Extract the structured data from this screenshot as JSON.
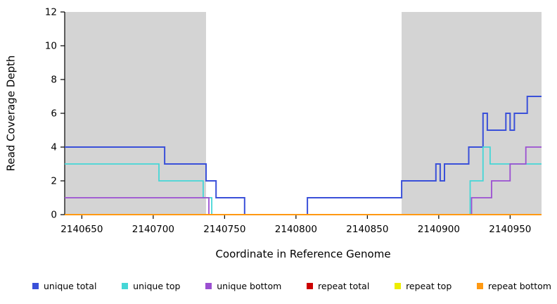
{
  "chart_data": {
    "type": "line",
    "subtype": "step-coverage",
    "title": "",
    "xlabel": "Coordinate in Reference Genome",
    "ylabel": "Read Coverage Depth",
    "xlim": [
      2140638,
      2140972
    ],
    "ylim": [
      0,
      12
    ],
    "x_ticks": [
      2140650,
      2140700,
      2140750,
      2140800,
      2140850,
      2140900,
      2140950
    ],
    "y_ticks": [
      0,
      2,
      4,
      6,
      8,
      10,
      12
    ],
    "grid": false,
    "background_color": "#ffffff",
    "highlight_regions": [
      {
        "start": 2140638,
        "end": 2140737,
        "color": "#d4d4d4"
      },
      {
        "start": 2140874,
        "end": 2140972,
        "color": "#d4d4d4"
      }
    ],
    "series": [
      {
        "name": "unique total",
        "color": "#3a50d9",
        "width": 2,
        "steps": [
          [
            2140638,
            4
          ],
          [
            2140708,
            3
          ],
          [
            2140737,
            2
          ],
          [
            2140744,
            1
          ],
          [
            2140764,
            0
          ],
          [
            2140808,
            1
          ],
          [
            2140874,
            2
          ],
          [
            2140898,
            3
          ],
          [
            2140901,
            2
          ],
          [
            2140904,
            3
          ],
          [
            2140921,
            4
          ],
          [
            2140931,
            6
          ],
          [
            2140934,
            5
          ],
          [
            2140947,
            6
          ],
          [
            2140950,
            5
          ],
          [
            2140953,
            6
          ],
          [
            2140962,
            7
          ]
        ]
      },
      {
        "name": "unique top",
        "color": "#45d6d6",
        "width": 1.8,
        "steps": [
          [
            2140638,
            3
          ],
          [
            2140704,
            2
          ],
          [
            2140735,
            1
          ],
          [
            2140741,
            0
          ],
          [
            2140922,
            2
          ],
          [
            2140931,
            4
          ],
          [
            2140936,
            3
          ]
        ]
      },
      {
        "name": "unique bottom",
        "color": "#9b4fd1",
        "width": 1.8,
        "steps": [
          [
            2140638,
            1
          ],
          [
            2140739,
            0
          ],
          [
            2140923,
            1
          ],
          [
            2140937,
            2
          ],
          [
            2140950,
            3
          ],
          [
            2140961,
            4
          ]
        ]
      },
      {
        "name": "repeat total",
        "color": "#cc0000",
        "width": 1.8,
        "steps": [
          [
            2140638,
            0
          ]
        ]
      },
      {
        "name": "repeat top",
        "color": "#eded00",
        "width": 1.8,
        "steps": [
          [
            2140638,
            0
          ]
        ]
      },
      {
        "name": "repeat bottom",
        "color": "#ff9912",
        "width": 2,
        "steps": [
          [
            2140638,
            0
          ]
        ]
      }
    ],
    "legend": {
      "position": "bottom",
      "items": [
        "unique total",
        "unique top",
        "unique bottom",
        "repeat total",
        "repeat top",
        "repeat bottom"
      ]
    }
  }
}
